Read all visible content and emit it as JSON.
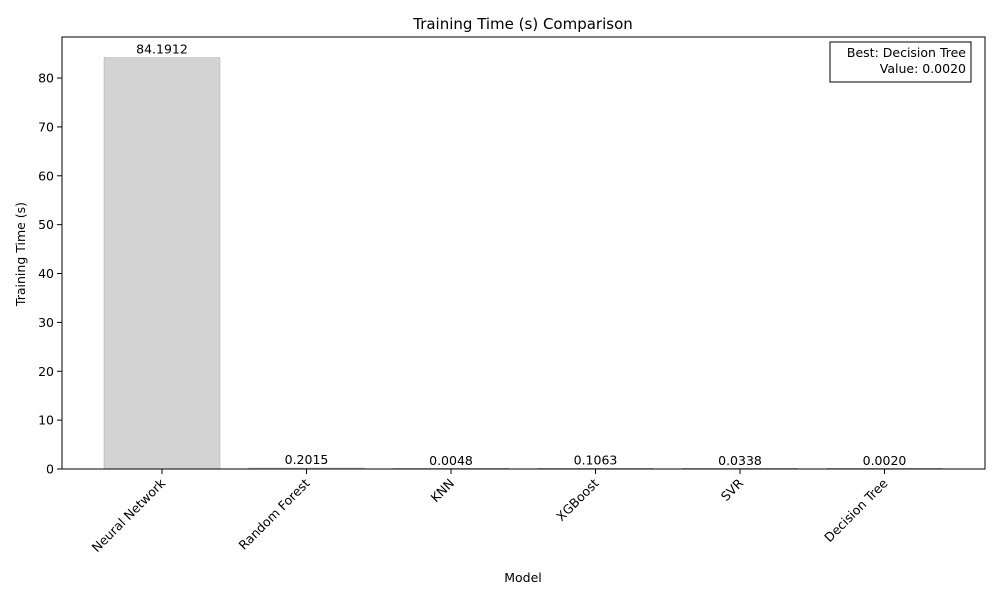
{
  "chart_data": {
    "type": "bar",
    "title": "Training Time (s) Comparison",
    "xlabel": "Model",
    "ylabel": "Training Time (s)",
    "categories": [
      "Neural Network",
      "Random Forest",
      "KNN",
      "XGBoost",
      "SVR",
      "Decision Tree"
    ],
    "values": [
      84.1912,
      0.2015,
      0.0048,
      0.1063,
      0.0338,
      0.002
    ],
    "value_labels": [
      "84.1912",
      "0.2015",
      "0.0048",
      "0.1063",
      "0.0338",
      "0.0020"
    ],
    "ylim": [
      0,
      88.4
    ],
    "yticks": [
      0,
      10,
      20,
      30,
      40,
      50,
      60,
      70,
      80
    ],
    "ytick_labels": [
      "0",
      "10",
      "20",
      "30",
      "40",
      "50",
      "60",
      "70",
      "80"
    ],
    "grid": false,
    "bar_color": "#d3d3d3",
    "annotation": {
      "placement": "top-right",
      "line1": "Best: Decision Tree",
      "line2": "Value: 0.0020"
    }
  }
}
